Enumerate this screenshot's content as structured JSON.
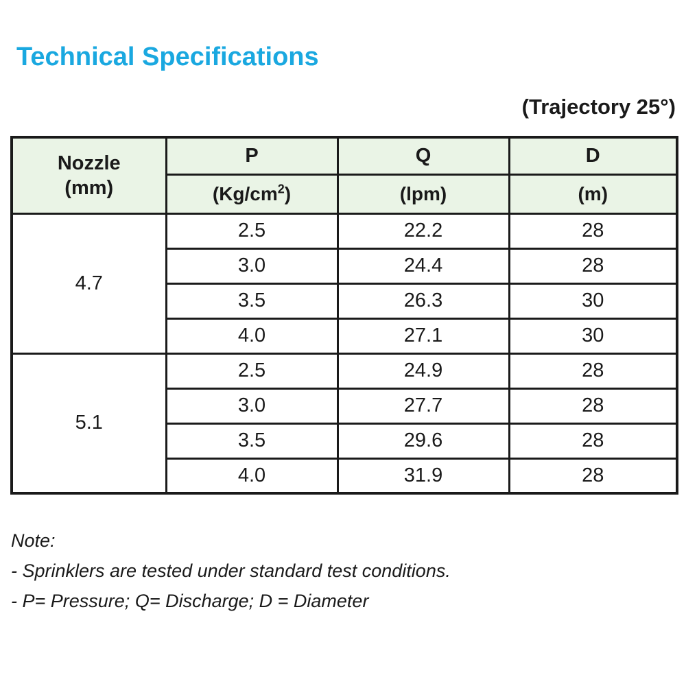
{
  "page": {
    "title": "Technical Specifications",
    "trajectory_label": "(Trajectory 25°)"
  },
  "colors": {
    "title_accent": "#1AA8E0",
    "header_bg": "#EAF4E6",
    "border": "#1a1a1a"
  },
  "table": {
    "header": {
      "nozzle_line1": "Nozzle",
      "nozzle_line2": "(mm)",
      "p_label": "P",
      "p_unit_base": "(Kg/cm",
      "p_unit_sup": "2",
      "p_unit_close": ")",
      "q_label": "Q",
      "q_unit": "(lpm)",
      "d_label": "D",
      "d_unit": "(m)"
    },
    "groups": [
      {
        "nozzle": "4.7",
        "rows": [
          {
            "p": "2.5",
            "q": "22.2",
            "d": "28"
          },
          {
            "p": "3.0",
            "q": "24.4",
            "d": "28"
          },
          {
            "p": "3.5",
            "q": "26.3",
            "d": "30"
          },
          {
            "p": "4.0",
            "q": "27.1",
            "d": "30"
          }
        ]
      },
      {
        "nozzle": "5.1",
        "rows": [
          {
            "p": "2.5",
            "q": "24.9",
            "d": "28"
          },
          {
            "p": "3.0",
            "q": "27.7",
            "d": "28"
          },
          {
            "p": "3.5",
            "q": "29.6",
            "d": "28"
          },
          {
            "p": "4.0",
            "q": "31.9",
            "d": "28"
          }
        ]
      }
    ]
  },
  "notes": {
    "title": "Note:",
    "line1": "- Sprinklers are tested under standard test conditions.",
    "line2": "- P=  Pressure;  Q= Discharge;  D = Diameter"
  }
}
